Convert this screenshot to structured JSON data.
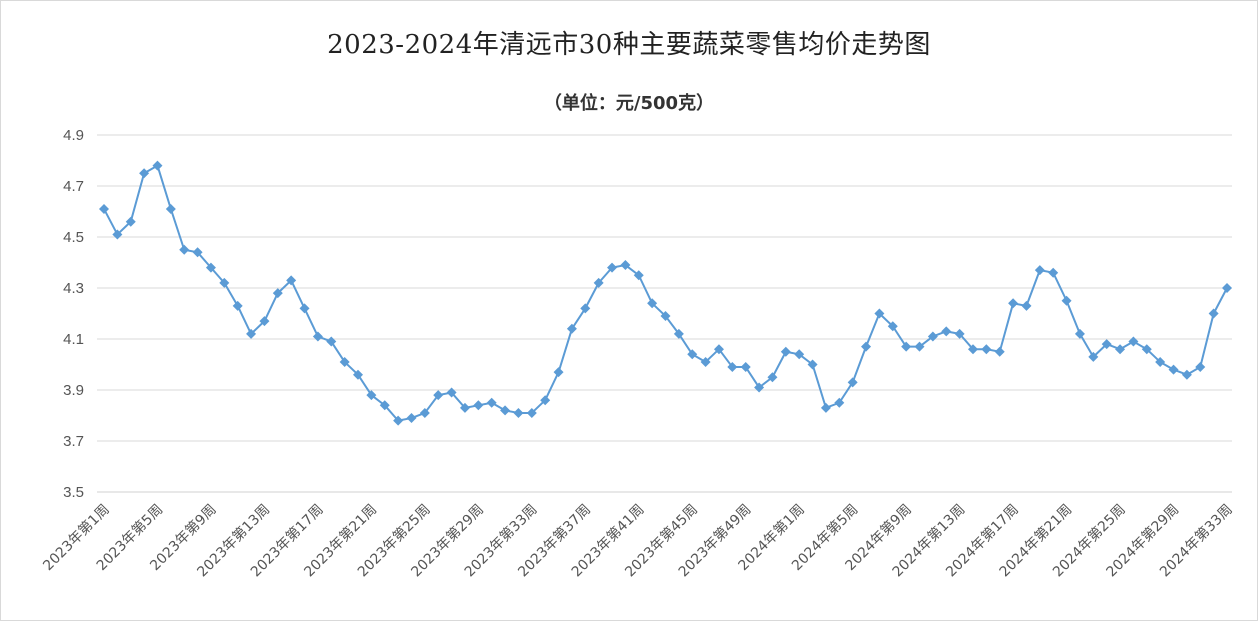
{
  "chart_data": {
    "type": "line",
    "title": "2023-2024年清远市30种主要蔬菜零售均价走势图",
    "subtitle": "（单位：元/500克）",
    "xlabel": "",
    "ylabel": "",
    "ylim": [
      3.5,
      4.9
    ],
    "yticks": [
      "3.5",
      "3.7",
      "3.9",
      "4.1",
      "4.3",
      "4.5",
      "4.7",
      "4.9"
    ],
    "grid": true,
    "legend": "none",
    "categories": [
      "2023年第1周",
      "2023年第2周",
      "2023年第3周",
      "2023年第4周",
      "2023年第5周",
      "2023年第6周",
      "2023年第7周",
      "2023年第8周",
      "2023年第9周",
      "2023年第10周",
      "2023年第11周",
      "2023年第12周",
      "2023年第13周",
      "2023年第14周",
      "2023年第15周",
      "2023年第16周",
      "2023年第17周",
      "2023年第18周",
      "2023年第19周",
      "2023年第20周",
      "2023年第21周",
      "2023年第22周",
      "2023年第23周",
      "2023年第24周",
      "2023年第25周",
      "2023年第26周",
      "2023年第27周",
      "2023年第28周",
      "2023年第29周",
      "2023年第30周",
      "2023年第31周",
      "2023年第32周",
      "2023年第33周",
      "2023年第34周",
      "2023年第35周",
      "2023年第36周",
      "2023年第37周",
      "2023年第38周",
      "2023年第39周",
      "2023年第40周",
      "2023年第41周",
      "2023年第42周",
      "2023年第43周",
      "2023年第44周",
      "2023年第45周",
      "2023年第46周",
      "2023年第47周",
      "2023年第48周",
      "2023年第49周",
      "2023年第50周",
      "2023年第51周",
      "2023年第52周",
      "2024年第1周",
      "2024年第2周",
      "2024年第3周",
      "2024年第4周",
      "2024年第5周",
      "2024年第6周",
      "2024年第7周",
      "2024年第8周",
      "2024年第9周",
      "2024年第10周",
      "2024年第11周",
      "2024年第12周",
      "2024年第13周",
      "2024年第14周",
      "2024年第15周",
      "2024年第16周",
      "2024年第17周",
      "2024年第18周",
      "2024年第19周",
      "2024年第20周",
      "2024年第21周",
      "2024年第22周",
      "2024年第23周",
      "2024年第24周",
      "2024年第25周",
      "2024年第26周",
      "2024年第27周",
      "2024年第28周",
      "2024年第29周",
      "2024年第30周",
      "2024年第31周",
      "2024年第32周",
      "2024年第33周"
    ],
    "labeled_categories": [
      "2023年第1周",
      "2023年第5周",
      "2023年第9周",
      "2023年第13周",
      "2023年第17周",
      "2023年第21周",
      "2023年第25周",
      "2023年第29周",
      "2023年第33周",
      "2023年第37周",
      "2023年第41周",
      "2023年第45周",
      "2023年第49周",
      "2024年第1周",
      "2024年第5周",
      "2024年第9周",
      "2024年第13周",
      "2024年第17周",
      "2024年第21周",
      "2024年第25周",
      "2024年第29周",
      "2024年第33周"
    ],
    "series": [
      {
        "color": "#5b9bd5",
        "values": [
          4.61,
          4.51,
          4.56,
          4.75,
          4.78,
          4.61,
          4.45,
          4.44,
          4.38,
          4.32,
          4.23,
          4.12,
          4.17,
          4.28,
          4.33,
          4.22,
          4.11,
          4.09,
          4.01,
          3.96,
          3.88,
          3.84,
          3.78,
          3.79,
          3.81,
          3.88,
          3.89,
          3.83,
          3.84,
          3.85,
          3.82,
          3.81,
          3.81,
          3.86,
          3.97,
          4.14,
          4.22,
          4.32,
          4.38,
          4.39,
          4.35,
          4.24,
          4.19,
          4.12,
          4.04,
          4.01,
          4.06,
          3.99,
          3.99,
          3.91,
          3.95,
          4.05,
          4.04,
          4.0,
          3.83,
          3.85,
          3.93,
          4.07,
          4.2,
          4.15,
          4.07,
          4.07,
          4.11,
          4.13,
          4.12,
          4.06,
          4.06,
          4.05,
          4.24,
          4.23,
          4.37,
          4.36,
          4.25,
          4.12,
          4.03,
          4.08,
          4.06,
          4.09,
          4.06,
          4.01,
          3.98,
          3.96,
          3.99,
          4.2,
          4.3
        ]
      }
    ]
  }
}
